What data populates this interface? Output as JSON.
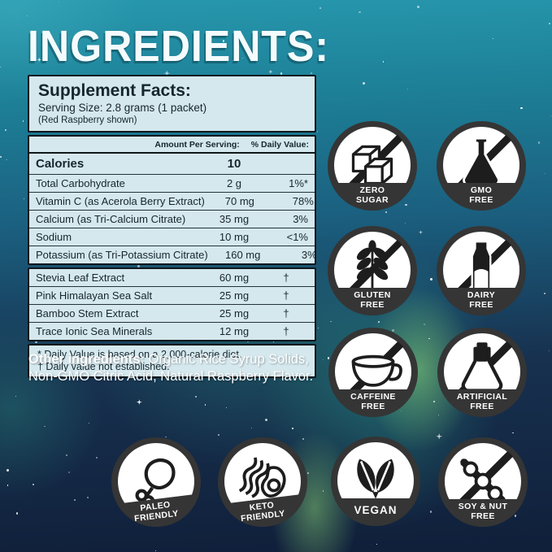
{
  "title": "INGREDIENTS:",
  "supplement_panel": {
    "heading": "Supplement Facts:",
    "serving_size": "Serving Size: 2.8 grams (1 packet)",
    "flavor_note": "(Red Raspberry shown)",
    "col_amount": "Amount Per Serving:",
    "col_dv": "% Daily Value:",
    "calories_label": "Calories",
    "calories_amount": "10",
    "nutrients": [
      {
        "label": "Total Carbohydrate",
        "amount": "2 g",
        "dv": "1%*"
      },
      {
        "label": "Vitamin C (as Acerola Berry Extract)",
        "amount": "70 mg",
        "dv": "78%"
      },
      {
        "label": "Calcium (as Tri-Calcium Citrate)",
        "amount": "35 mg",
        "dv": "3%"
      },
      {
        "label": "Sodium",
        "amount": "10 mg",
        "dv": "<1%"
      },
      {
        "label": "Potassium (as Tri-Potassium Citrate)",
        "amount": "160 mg",
        "dv": "3%"
      }
    ],
    "extras": [
      {
        "label": "Stevia Leaf Extract",
        "amount": "60 mg",
        "dv": "†"
      },
      {
        "label": "Pink Himalayan Sea Salt",
        "amount": "25 mg",
        "dv": "†"
      },
      {
        "label": "Bamboo Stem Extract",
        "amount": "25 mg",
        "dv": "†"
      },
      {
        "label": "Trace Ionic Sea Minerals",
        "amount": "12 mg",
        "dv": "†"
      }
    ],
    "footnote_1": "* Daily Value is based on a 2,000-calorie diet.",
    "footnote_2": "† Daily value not established."
  },
  "other_ingredients": {
    "lead": "Other ingredients:",
    "text": " Organic Rice Syrup Solids, Non-GMO Citric Acid, Natural Raspberry Flavor."
  },
  "badges": [
    {
      "id": "zero-sugar",
      "line1": "ZERO",
      "line2": "SUGAR",
      "icon": "sugar-cubes",
      "crossed": true
    },
    {
      "id": "gmo-free",
      "line1": "GMO",
      "line2": "FREE",
      "icon": "flask",
      "crossed": true
    },
    {
      "id": "gluten-free",
      "line1": "GLUTEN",
      "line2": "FREE",
      "icon": "wheat",
      "crossed": true
    },
    {
      "id": "dairy-free",
      "line1": "DAIRY",
      "line2": "FREE",
      "icon": "milk-bottle",
      "crossed": true
    },
    {
      "id": "caffeine-free",
      "line1": "CAFFEINE",
      "line2": "FREE",
      "icon": "coffee-cup",
      "crossed": true
    },
    {
      "id": "artificial-free",
      "line1": "ARTIFICIAL",
      "line2": "FREE",
      "icon": "flask-outline",
      "crossed": true
    },
    {
      "id": "paleo-friendly",
      "line1": "PALEO",
      "line2": "FRIENDLY",
      "icon": "drumstick",
      "crossed": false
    },
    {
      "id": "keto-friendly",
      "line1": "KETO",
      "line2": "FRIENDLY",
      "icon": "bacon-avocado",
      "crossed": false
    },
    {
      "id": "vegan",
      "line1": "VEGAN",
      "line2": "",
      "icon": "leaves",
      "crossed": false
    },
    {
      "id": "soy-nut-free",
      "line1": "SOY & NUT",
      "line2": "FREE",
      "icon": "soybean-pod",
      "crossed": true
    }
  ],
  "colors": {
    "sky_top": "#2798ae",
    "sky_mid": "#1b5f7f",
    "sky_deep": "#17314f",
    "sky_bottom": "#101f3a",
    "aurora_green": "#7fd36e",
    "aurora_teal": "#2fae96",
    "panel_bg": "#d5e8ee",
    "panel_border": "#10181c",
    "panel_text": "#16262e",
    "badge_ring": "#353535",
    "badge_face": "#ffffff",
    "badge_icon": "#1d1d1d",
    "badge_label": "#ffffff",
    "title_color": "#f4fbfc"
  }
}
